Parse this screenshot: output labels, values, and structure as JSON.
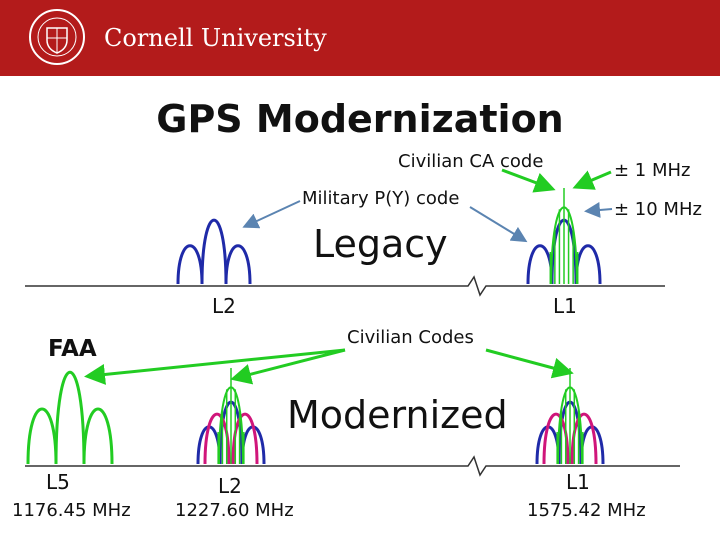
{
  "header": {
    "brand": "Cornell University",
    "seal_text": "CORNELL UNIVERSITY FOUNDED A.D. 1865",
    "color": "#b31b1b"
  },
  "slide": {
    "title": "GPS Modernization",
    "labels": {
      "civilian_ca": "Civilian CA code",
      "military_py": "Military P(Y) code",
      "legacy": "Legacy",
      "pm1": "± 1 MHz",
      "pm10": "± 10 MHz",
      "faa": "FAA",
      "civilian_codes": "Civilian Codes",
      "modernized": "Modernized"
    },
    "bands": {
      "legacy_l2": "L2",
      "legacy_l1": "L1",
      "l5": "L5",
      "l5_freq": "1176.45 MHz",
      "mod_l2": "L2",
      "mod_l2_freq": "1227.60 MHz",
      "mod_l1": "L1",
      "mod_l1_freq": "1575.42 MHz"
    }
  },
  "colors": {
    "military": "#1f2aa8",
    "civilian": "#22cc22",
    "m_code": "#d0157a",
    "arrow_blue": "#5b84b1",
    "arrow_green": "#22cc22"
  }
}
